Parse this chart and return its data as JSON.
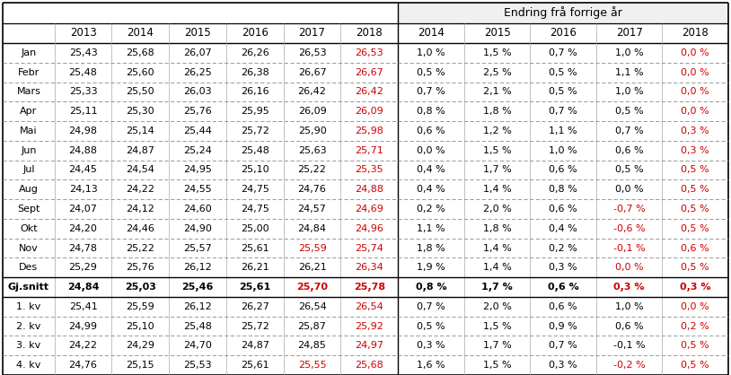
{
  "header_top": "Endring frå forrige år",
  "years_left": [
    "2013",
    "2014",
    "2015",
    "2016",
    "2017",
    "2018"
  ],
  "years_right": [
    "2014",
    "2015",
    "2016",
    "2017",
    "2018"
  ],
  "rows": [
    {
      "label": "Jan",
      "vals": [
        "25,43",
        "25,68",
        "26,07",
        "26,26",
        "26,53",
        "26,53"
      ],
      "chg": [
        "1,0 %",
        "1,5 %",
        "0,7 %",
        "1,0 %",
        "0,0 %"
      ]
    },
    {
      "label": "Febr",
      "vals": [
        "25,48",
        "25,60",
        "26,25",
        "26,38",
        "26,67",
        "26,67"
      ],
      "chg": [
        "0,5 %",
        "2,5 %",
        "0,5 %",
        "1,1 %",
        "0,0 %"
      ]
    },
    {
      "label": "Mars",
      "vals": [
        "25,33",
        "25,50",
        "26,03",
        "26,16",
        "26,42",
        "26,42"
      ],
      "chg": [
        "0,7 %",
        "2,1 %",
        "0,5 %",
        "1,0 %",
        "0,0 %"
      ]
    },
    {
      "label": "Apr",
      "vals": [
        "25,11",
        "25,30",
        "25,76",
        "25,95",
        "26,09",
        "26,09"
      ],
      "chg": [
        "0,8 %",
        "1,8 %",
        "0,7 %",
        "0,5 %",
        "0,0 %"
      ]
    },
    {
      "label": "Mai",
      "vals": [
        "24,98",
        "25,14",
        "25,44",
        "25,72",
        "25,90",
        "25,98"
      ],
      "chg": [
        "0,6 %",
        "1,2 %",
        "1,1 %",
        "0,7 %",
        "0,3 %"
      ]
    },
    {
      "label": "Jun",
      "vals": [
        "24,88",
        "24,87",
        "25,24",
        "25,48",
        "25,63",
        "25,71"
      ],
      "chg": [
        "0,0 %",
        "1,5 %",
        "1,0 %",
        "0,6 %",
        "0,3 %"
      ]
    },
    {
      "label": "Jul",
      "vals": [
        "24,45",
        "24,54",
        "24,95",
        "25,10",
        "25,22",
        "25,35"
      ],
      "chg": [
        "0,4 %",
        "1,7 %",
        "0,6 %",
        "0,5 %",
        "0,5 %"
      ]
    },
    {
      "label": "Aug",
      "vals": [
        "24,13",
        "24,22",
        "24,55",
        "24,75",
        "24,76",
        "24,88"
      ],
      "chg": [
        "0,4 %",
        "1,4 %",
        "0,8 %",
        "0,0 %",
        "0,5 %"
      ]
    },
    {
      "label": "Sept",
      "vals": [
        "24,07",
        "24,12",
        "24,60",
        "24,75",
        "24,57",
        "24,69"
      ],
      "chg": [
        "0,2 %",
        "2,0 %",
        "0,6 %",
        "-0,7 %",
        "0,5 %"
      ]
    },
    {
      "label": "Okt",
      "vals": [
        "24,20",
        "24,46",
        "24,90",
        "25,00",
        "24,84",
        "24,96"
      ],
      "chg": [
        "1,1 %",
        "1,8 %",
        "0,4 %",
        "-0,6 %",
        "0,5 %"
      ]
    },
    {
      "label": "Nov",
      "vals": [
        "24,78",
        "25,22",
        "25,57",
        "25,61",
        "25,59",
        "25,74"
      ],
      "chg": [
        "1,8 %",
        "1,4 %",
        "0,2 %",
        "-0,1 %",
        "0,6 %"
      ]
    },
    {
      "label": "Des",
      "vals": [
        "25,29",
        "25,76",
        "26,12",
        "26,21",
        "26,21",
        "26,34"
      ],
      "chg": [
        "1,9 %",
        "1,4 %",
        "0,3 %",
        "0,0 %",
        "0,5 %"
      ]
    },
    {
      "label": "Gj.snitt",
      "vals": [
        "24,84",
        "25,03",
        "25,46",
        "25,61",
        "25,70",
        "25,78"
      ],
      "chg": [
        "0,8 %",
        "1,7 %",
        "0,6 %",
        "0,3 %",
        "0,3 %"
      ],
      "bold": true
    },
    {
      "label": "1. kv",
      "vals": [
        "25,41",
        "25,59",
        "26,12",
        "26,27",
        "26,54",
        "26,54"
      ],
      "chg": [
        "0,7 %",
        "2,0 %",
        "0,6 %",
        "1,0 %",
        "0,0 %"
      ]
    },
    {
      "label": "2. kv",
      "vals": [
        "24,99",
        "25,10",
        "25,48",
        "25,72",
        "25,87",
        "25,92"
      ],
      "chg": [
        "0,5 %",
        "1,5 %",
        "0,9 %",
        "0,6 %",
        "0,2 %"
      ]
    },
    {
      "label": "3. kv",
      "vals": [
        "24,22",
        "24,29",
        "24,70",
        "24,87",
        "24,85",
        "24,97"
      ],
      "chg": [
        "0,3 %",
        "1,7 %",
        "0,7 %",
        "-0,1 %",
        "0,5 %"
      ]
    },
    {
      "label": "4. kv",
      "vals": [
        "24,76",
        "25,15",
        "25,53",
        "25,61",
        "25,55",
        "25,68"
      ],
      "chg": [
        "1,6 %",
        "1,5 %",
        "0,3 %",
        "-0,2 %",
        "0,5 %"
      ]
    }
  ],
  "red_val_col5_rows": [
    0,
    1,
    2,
    3,
    4,
    5,
    6,
    7,
    8,
    9,
    10,
    11,
    12,
    13,
    14,
    15,
    16
  ],
  "red_val_col4_rows": [
    10,
    12,
    16
  ],
  "red_chg_col3_rows": [
    8,
    9,
    10,
    11,
    12,
    16
  ],
  "red_chg_col4_rows": [
    0,
    1,
    2,
    3,
    4,
    5,
    6,
    7,
    8,
    9,
    10,
    11,
    12,
    13,
    14,
    15,
    16
  ],
  "normal_color": "#000000",
  "red_color": "#cc0000",
  "bg_color": "#ffffff",
  "header_bg": "#f0f0f0",
  "font_size": 8.0
}
